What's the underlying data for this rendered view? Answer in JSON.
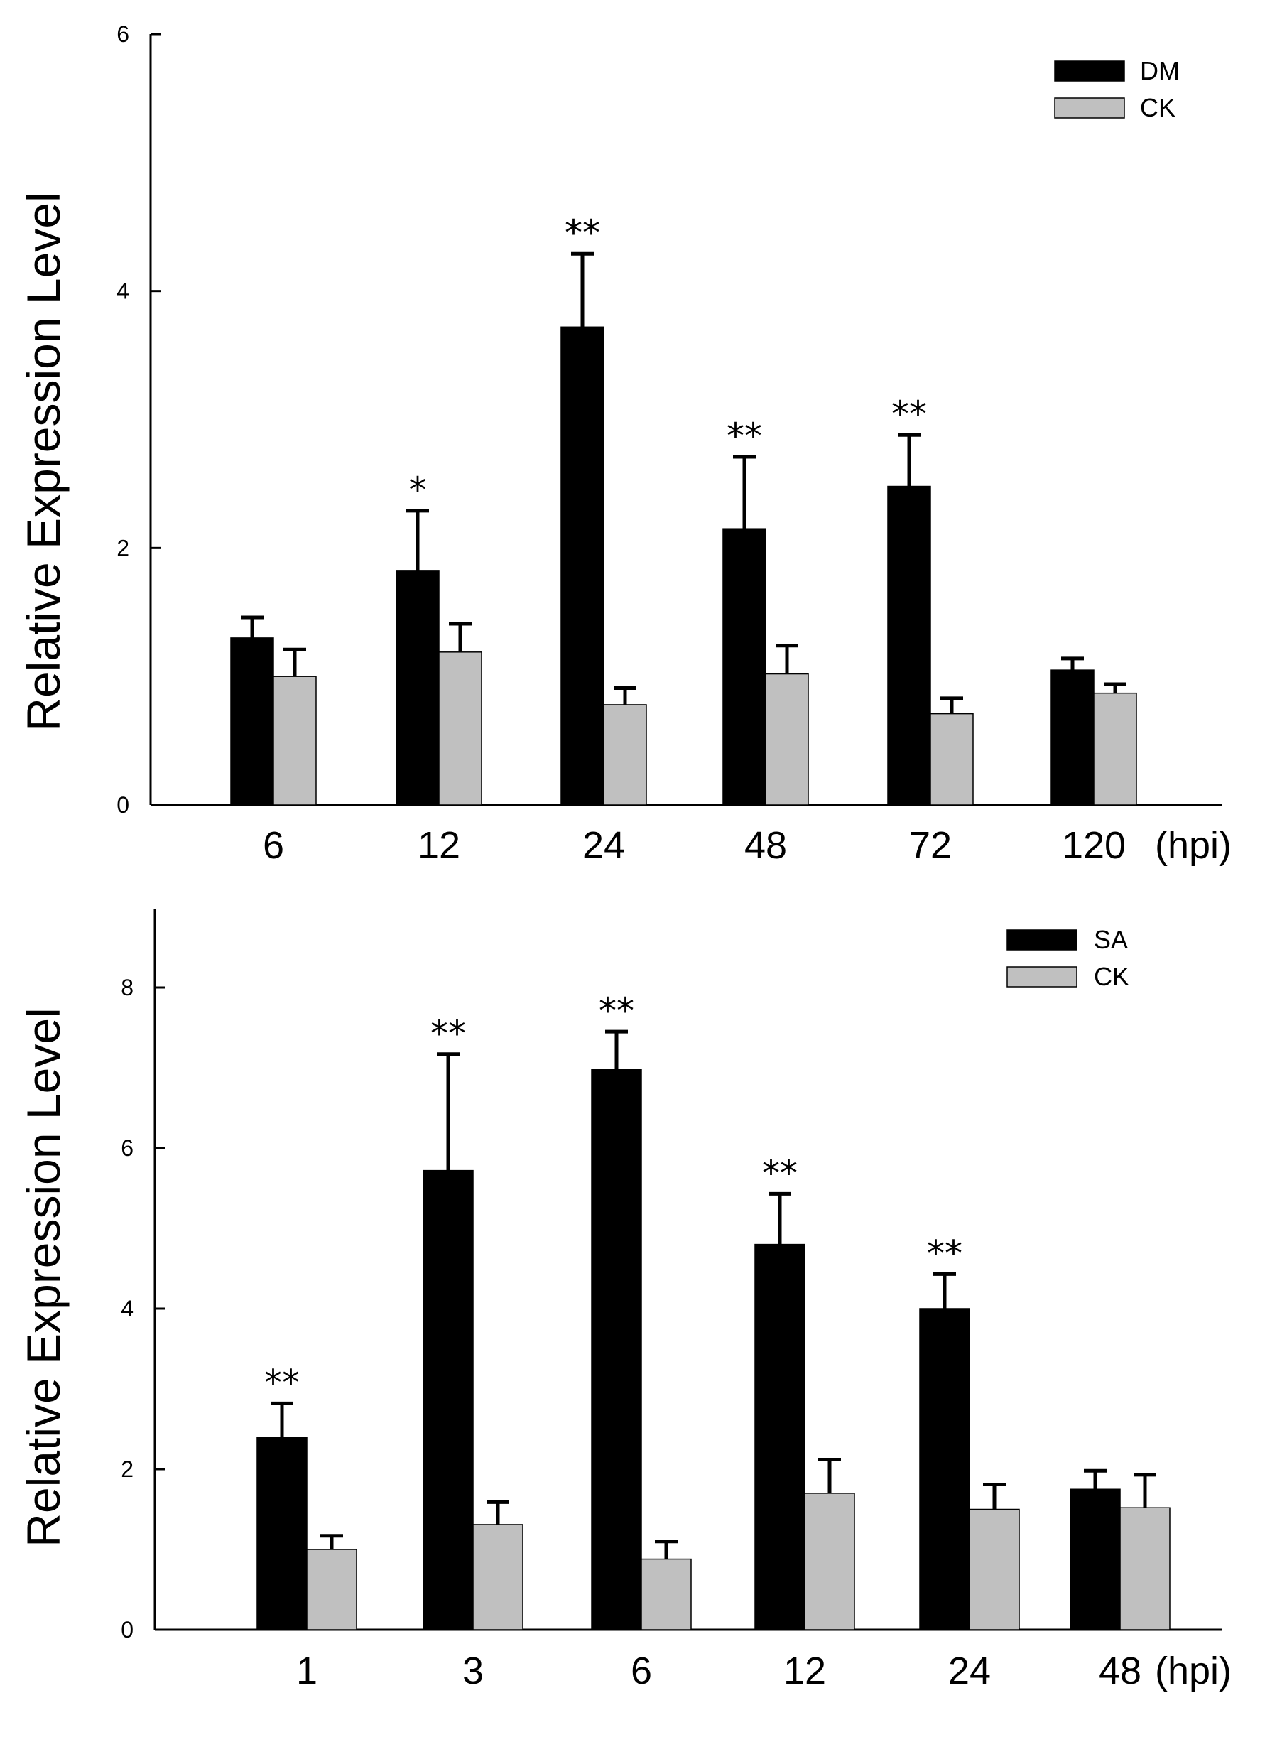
{
  "chart_data": [
    {
      "type": "bar",
      "ylabel": "Relative Expression Level",
      "xunit": "(hpi)",
      "ylim": [
        0,
        6
      ],
      "yticks": [
        0,
        2,
        4,
        6
      ],
      "categories": [
        "6",
        "12",
        "24",
        "48",
        "72",
        "120"
      ],
      "series": [
        {
          "name": "DM",
          "color": "#000000",
          "values": [
            1.3,
            1.82,
            3.72,
            2.15,
            2.48,
            1.05
          ],
          "errors": [
            0.16,
            0.47,
            0.57,
            0.56,
            0.4,
            0.09
          ]
        },
        {
          "name": "CK",
          "color": "#c0c0c0",
          "values": [
            1.0,
            1.19,
            0.78,
            1.02,
            0.71,
            0.87
          ],
          "errors": [
            0.21,
            0.22,
            0.13,
            0.22,
            0.12,
            0.07
          ]
        }
      ],
      "significance": [
        "",
        "*",
        "**",
        "**",
        "**",
        ""
      ],
      "legend": "top-right"
    },
    {
      "type": "bar",
      "ylabel": "Relative Expression Level",
      "xunit": "(hpi)",
      "ylim": [
        0,
        9
      ],
      "yticks": [
        0,
        2,
        4,
        6,
        8
      ],
      "categories": [
        "1",
        "3",
        "6",
        "12",
        "24",
        "48"
      ],
      "series": [
        {
          "name": "SA",
          "color": "#000000",
          "values": [
            2.4,
            5.72,
            6.98,
            4.8,
            4.0,
            1.75
          ],
          "errors": [
            0.42,
            1.45,
            0.47,
            0.63,
            0.43,
            0.23
          ]
        },
        {
          "name": "CK",
          "color": "#c0c0c0",
          "values": [
            1.0,
            1.31,
            0.88,
            1.7,
            1.5,
            1.52
          ],
          "errors": [
            0.17,
            0.28,
            0.22,
            0.42,
            0.31,
            0.41
          ]
        }
      ],
      "significance": [
        "**",
        "**",
        "**",
        "**",
        "**",
        ""
      ],
      "legend": "top-right"
    }
  ]
}
